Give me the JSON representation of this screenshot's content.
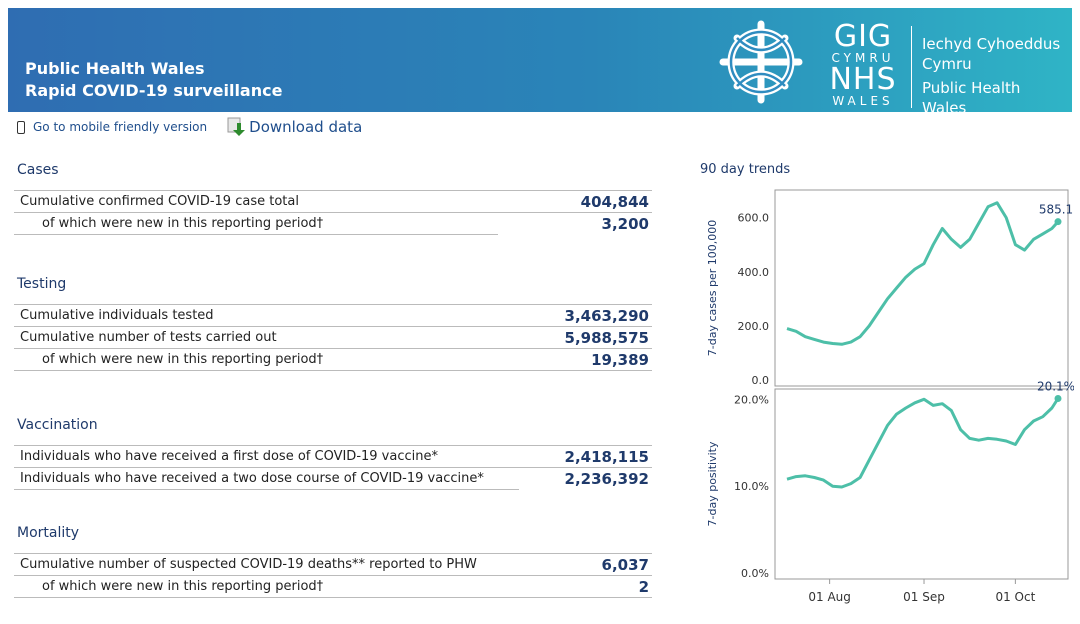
{
  "header": {
    "title_line1": "Public Health Wales",
    "title_line2": "Rapid COVID-19 surveillance",
    "logo": {
      "gig": "GIG",
      "cymru": "CYMRU",
      "nhs": "NHS",
      "wales": "WALES",
      "org_welsh_line1": "Iechyd Cyhoeddus",
      "org_welsh_line2": "Cymru",
      "org_english_line1": "Public Health",
      "org_english_line2": "Wales"
    }
  },
  "toplinks": {
    "mobile_label": "Go to mobile friendly version",
    "download_label": "Download data"
  },
  "sections": {
    "cases": {
      "title": "Cases",
      "rows": [
        {
          "label": "Cumulative confirmed COVID-19 case total",
          "value": "404,844"
        },
        {
          "label": "of which were new in this reporting period†",
          "value": "3,200"
        }
      ]
    },
    "testing": {
      "title": "Testing",
      "rows": [
        {
          "label": "Cumulative individuals tested",
          "value": "3,463,290"
        },
        {
          "label": "Cumulative number of tests carried out",
          "value": "5,988,575"
        },
        {
          "label": "of which were new in this reporting period†",
          "value": "19,389"
        }
      ]
    },
    "vaccination": {
      "title": "Vaccination",
      "rows": [
        {
          "label": "Individuals who have received a first dose of COVID-19 vaccine*",
          "value": "2,418,115"
        },
        {
          "label": "Individuals who have received a two dose course of COVID-19 vaccine*",
          "value": "2,236,392"
        }
      ]
    },
    "mortality": {
      "title": "Mortality",
      "rows": [
        {
          "label": "Cumulative number of suspected COVID-19 deaths** reported to PHW",
          "value": "6,037"
        },
        {
          "label": "of which were new in this reporting period†",
          "value": "2"
        }
      ]
    }
  },
  "trends": {
    "title": "90 day trends",
    "line_color": "#4dbfa8"
  },
  "chart_data": [
    {
      "type": "line",
      "ylabel": "7-day cases per 100,000",
      "ylim": [
        0,
        680
      ],
      "yticks": [
        "0.0",
        "200.0",
        "400.0",
        "600.0"
      ],
      "ytick_values": [
        0,
        200,
        400,
        600
      ],
      "last_label": "585.1",
      "x": [
        "2021-07-18",
        "2021-07-21",
        "2021-07-24",
        "2021-07-27",
        "2021-07-30",
        "2021-08-02",
        "2021-08-05",
        "2021-08-08",
        "2021-08-11",
        "2021-08-14",
        "2021-08-17",
        "2021-08-20",
        "2021-08-23",
        "2021-08-26",
        "2021-08-29",
        "2021-09-01",
        "2021-09-04",
        "2021-09-07",
        "2021-09-10",
        "2021-09-13",
        "2021-09-16",
        "2021-09-19",
        "2021-09-22",
        "2021-09-25",
        "2021-09-28",
        "2021-10-01",
        "2021-10-04",
        "2021-10-07",
        "2021-10-10",
        "2021-10-13",
        "2021-10-15"
      ],
      "series": [
        {
          "values": [
            190,
            180,
            160,
            150,
            140,
            135,
            132,
            140,
            160,
            200,
            250,
            300,
            340,
            380,
            410,
            430,
            500,
            560,
            520,
            490,
            520,
            580,
            640,
            655,
            600,
            500,
            480,
            520,
            540,
            560,
            585.1
          ]
        }
      ],
      "xticks": [
        "01 Aug",
        "01 Sep",
        "01 Oct"
      ],
      "xtick_dates": [
        "2021-08-01",
        "2021-09-01",
        "2021-10-01"
      ]
    },
    {
      "type": "line",
      "ylabel": "7-day positivity",
      "ylim": [
        0,
        20.5
      ],
      "yticks": [
        "0.0%",
        "10.0%",
        "20.0%"
      ],
      "ytick_values": [
        0,
        10,
        20
      ],
      "last_label": "20.1%",
      "x": [
        "2021-07-18",
        "2021-07-21",
        "2021-07-24",
        "2021-07-27",
        "2021-07-30",
        "2021-08-02",
        "2021-08-05",
        "2021-08-08",
        "2021-08-11",
        "2021-08-14",
        "2021-08-17",
        "2021-08-20",
        "2021-08-23",
        "2021-08-26",
        "2021-08-29",
        "2021-09-01",
        "2021-09-04",
        "2021-09-07",
        "2021-09-10",
        "2021-09-13",
        "2021-09-16",
        "2021-09-19",
        "2021-09-22",
        "2021-09-25",
        "2021-09-28",
        "2021-10-01",
        "2021-10-04",
        "2021-10-07",
        "2021-10-10",
        "2021-10-13",
        "2021-10-15"
      ],
      "series": [
        {
          "values": [
            10.8,
            11.1,
            11.2,
            11.0,
            10.7,
            10.0,
            9.9,
            10.3,
            11.0,
            13.0,
            15.0,
            17.0,
            18.3,
            19.0,
            19.6,
            20.0,
            19.3,
            19.5,
            18.7,
            16.5,
            15.5,
            15.3,
            15.5,
            15.4,
            15.2,
            14.8,
            16.5,
            17.5,
            18.0,
            19.0,
            20.1
          ]
        }
      ],
      "xticks": [
        "01 Aug",
        "01 Sep",
        "01 Oct"
      ],
      "xtick_dates": [
        "2021-08-01",
        "2021-09-01",
        "2021-10-01"
      ]
    }
  ]
}
